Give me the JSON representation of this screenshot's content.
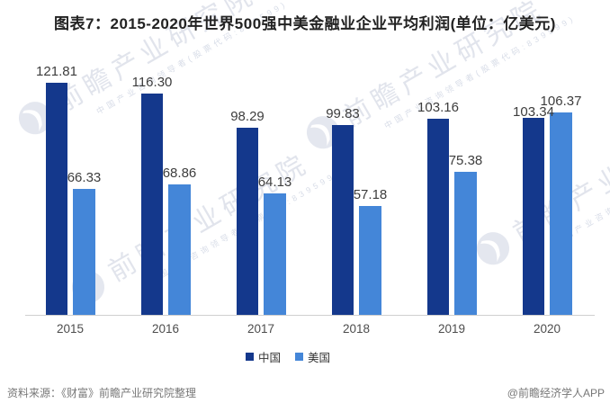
{
  "chart_data": {
    "type": "bar",
    "title": "图表7：2015-2020年世界500强中美金融业企业平均利润(单位：亿美元)",
    "categories": [
      "2015",
      "2016",
      "2017",
      "2018",
      "2019",
      "2020"
    ],
    "series": [
      {
        "id": "china",
        "name": "中国",
        "color": "#14388c",
        "values": [
          121.81,
          116.3,
          98.29,
          99.83,
          103.16,
          103.34
        ]
      },
      {
        "id": "usa",
        "name": "美国",
        "color": "#4486d8",
        "values": [
          66.33,
          68.86,
          64.13,
          57.18,
          75.38,
          106.37
        ]
      }
    ],
    "ylim": [
      0,
      130
    ],
    "xlabel": "",
    "ylabel": "",
    "grid": false,
    "value_labels": true,
    "value_label_decimals": 2,
    "legend_position": "bottom"
  },
  "footer": {
    "source": "资料来源：《财富》前瞻产业研究院整理",
    "credit": "@前瞻经济学人APP"
  },
  "watermark": {
    "logo": "qianzhan-logo",
    "text_large": "前瞻产业研究院",
    "text_small": "中国产业咨询领导者(股票代码:839599)"
  }
}
